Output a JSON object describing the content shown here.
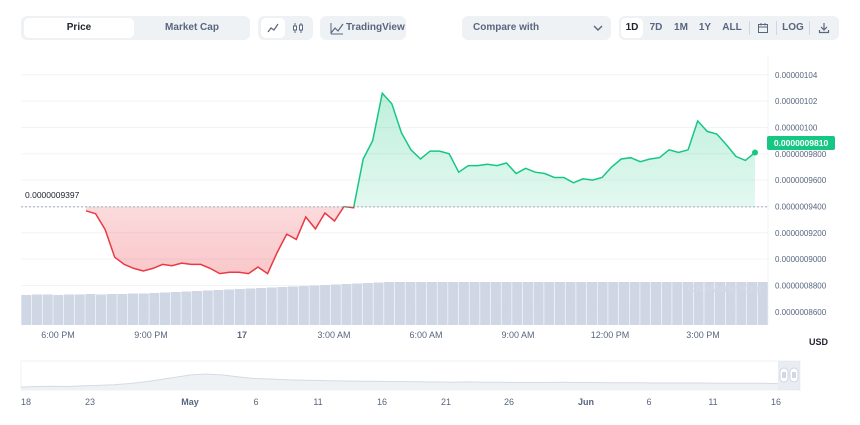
{
  "toolbar": {
    "chart_type_options": [
      "Price",
      "Market Cap"
    ],
    "active_chart_type": "Price",
    "chart_style_icons": [
      "line-chart-icon",
      "candlestick-icon"
    ],
    "tradingview_label": "TradingView",
    "compare_placeholder": "Compare with",
    "ranges": [
      "1D",
      "7D",
      "1M",
      "1Y",
      "ALL"
    ],
    "active_range": "1D",
    "log_label": "LOG",
    "icons": [
      "calendar-icon",
      "download-icon",
      "chevron-down-icon",
      "tradingview-icon"
    ]
  },
  "colors": {
    "up": "#16c784",
    "down": "#ea3943",
    "volume": "#cfd6e4",
    "grid": "#f1f3f6"
  },
  "chart_data": {
    "type": "line",
    "x_ticks": [
      "6:00 PM",
      "9:00 PM",
      "17",
      "3:00 AM",
      "6:00 AM",
      "9:00 AM",
      "12:00 PM",
      "3:00 PM"
    ],
    "x_ticks_bold": [
      "17"
    ],
    "y_ticks": [
      "0.00000104",
      "0.00000102",
      "0.00000100",
      "0.0000009800",
      "0.0000009600",
      "0.0000009400",
      "0.0000009200",
      "0.0000009000",
      "0.0000008800",
      "0.0000008600"
    ],
    "ylim": [
      8.5e-07,
      1.055e-06
    ],
    "reference_value": 9.397e-07,
    "reference_label": "0.0000009397",
    "current_price_label": "0.0000009810",
    "y_unit": "USD",
    "watermark": "CoinMarketCap",
    "series": [
      {
        "values": [
          9.367e-07,
          9.345e-07,
          9.225e-07,
          9.015e-07,
          8.96e-07,
          8.93e-07,
          8.91e-07,
          8.93e-07,
          8.96e-07,
          8.95e-07,
          8.97e-07,
          8.96e-07,
          8.96e-07,
          8.93e-07,
          8.89e-07,
          8.9e-07,
          8.9e-07,
          8.89e-07,
          8.94e-07,
          8.89e-07,
          9.05e-07,
          9.19e-07,
          9.15e-07,
          9.32e-07,
          9.23e-07,
          9.35e-07,
          9.29e-07,
          9.4e-07,
          9.39e-07,
          9.76e-07,
          9.9e-07,
          1.026e-06,
          1.018e-06,
          9.96e-07,
          9.83e-07,
          9.76e-07,
          9.82e-07,
          9.82e-07,
          9.8e-07,
          9.66e-07,
          9.71e-07,
          9.71e-07,
          9.72e-07,
          9.71e-07,
          9.73e-07,
          9.65e-07,
          9.69e-07,
          9.66e-07,
          9.65e-07,
          9.62e-07,
          9.62e-07,
          9.58e-07,
          9.61e-07,
          9.6e-07,
          9.62e-07,
          9.7e-07,
          9.76e-07,
          9.77e-07,
          9.74e-07,
          9.76e-07,
          9.77e-07,
          9.83e-07,
          9.81e-07,
          9.83e-07,
          1.005e-06,
          9.97e-07,
          9.95e-07,
          9.87e-07,
          9.78e-07,
          9.75e-07,
          9.81e-07
        ]
      }
    ],
    "volume": [
      0.6,
      0.61,
      0.61,
      0.6,
      0.61,
      0.61,
      0.62,
      0.61,
      0.62,
      0.62,
      0.63,
      0.63,
      0.64,
      0.65,
      0.66,
      0.67,
      0.68,
      0.69,
      0.7,
      0.71,
      0.72,
      0.73,
      0.74,
      0.75,
      0.76,
      0.77,
      0.78,
      0.79,
      0.8,
      0.81,
      0.82,
      0.83,
      0.84,
      0.85,
      0.86,
      0.86,
      0.86,
      0.86,
      0.86,
      0.86,
      0.86,
      0.86,
      0.86,
      0.86,
      0.86,
      0.86,
      0.86,
      0.86,
      0.86,
      0.86,
      0.86,
      0.86,
      0.86,
      0.86,
      0.86,
      0.86,
      0.86,
      0.86,
      0.86,
      0.86,
      0.86,
      0.86,
      0.86,
      0.86,
      0.86,
      0.86,
      0.86,
      0.86,
      0.86,
      0.86
    ]
  },
  "navigator": {
    "x_ticks": [
      "18",
      "23",
      "May",
      "6",
      "11",
      "16",
      "21",
      "26",
      "Jun",
      "6",
      "11",
      "16"
    ],
    "x_ticks_bold": [
      "May",
      "Jun"
    ],
    "history": [
      0.1,
      0.12,
      0.13,
      0.12,
      0.14,
      0.16,
      0.18,
      0.22,
      0.28,
      0.36,
      0.44,
      0.52,
      0.55,
      0.52,
      0.46,
      0.4,
      0.38,
      0.36,
      0.34,
      0.33,
      0.32,
      0.31,
      0.3,
      0.3,
      0.29,
      0.29,
      0.28,
      0.28,
      0.27,
      0.28,
      0.27,
      0.27,
      0.26,
      0.26,
      0.26,
      0.27,
      0.26,
      0.26,
      0.25,
      0.25,
      0.25,
      0.24,
      0.24,
      0.24,
      0.24,
      0.23,
      0.23,
      0.23,
      0.23,
      0.22
    ]
  }
}
